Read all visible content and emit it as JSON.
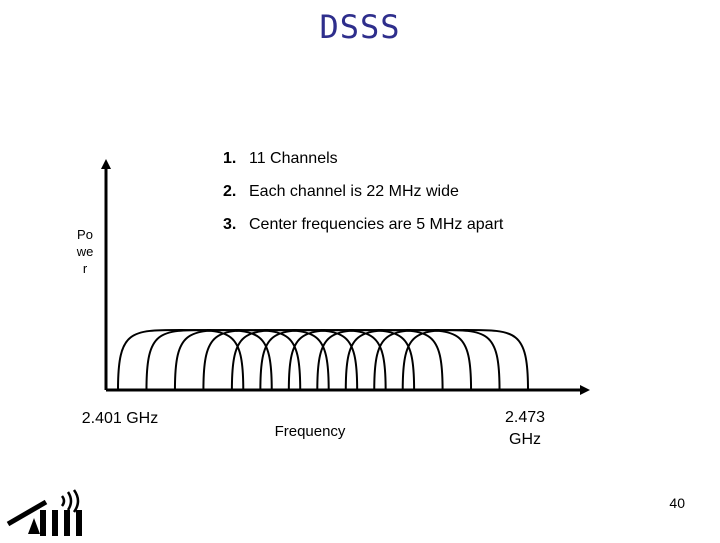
{
  "title": "DSSS",
  "points": [
    {
      "num": "1.",
      "text": "11 Channels"
    },
    {
      "num": "2.",
      "text": "Each channel is 22 MHz wide"
    },
    {
      "num": "3.",
      "text": "Center frequencies are 5 MHz apart"
    }
  ],
  "y_axis_label": "Power",
  "x_axis": {
    "start_label": "2.401 GHz",
    "end_label": "2.473 GHz",
    "axis_label": "Frequency"
  },
  "channels": {
    "count": 11,
    "width_mhz": 22,
    "spacing_mhz": 5
  },
  "page_number": "40"
}
